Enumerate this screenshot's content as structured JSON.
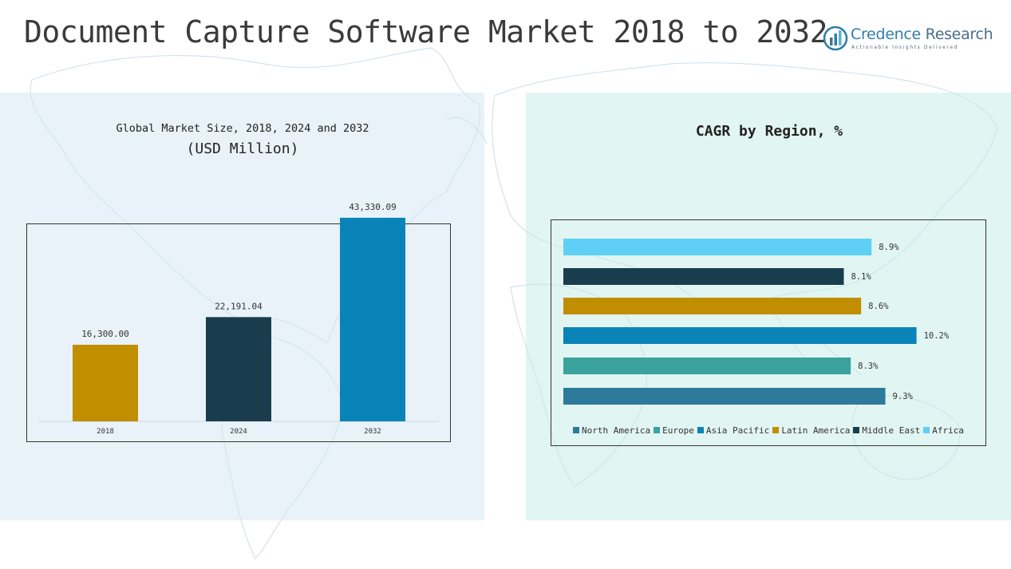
{
  "title": "Document Capture Software Market 2018 to 2032",
  "logo": {
    "name_part1": "Credence",
    "name_part2": "Research",
    "tagline": "Actionable Insights Delivered"
  },
  "colors": {
    "gold": "#c08e00",
    "dark_navy": "#1a3d4d",
    "blue": "#0a84b8",
    "steel_blue": "#2e7a9a",
    "teal": "#3aa39e",
    "sky": "#5fd0f5"
  },
  "chart_data": [
    {
      "type": "bar",
      "title": "Global Market Size, 2018, 2024 and 2032",
      "subtitle": "(USD Million)",
      "categories": [
        "2018",
        "2024",
        "2032"
      ],
      "values": [
        16300.0,
        22191.04,
        43330.09
      ],
      "value_labels": [
        "16,300.00",
        "22,191.04",
        "43,330.09"
      ],
      "colors": [
        "#c08e00",
        "#1a3d4d",
        "#0a84b8"
      ],
      "ylim": [
        0,
        44500
      ]
    },
    {
      "type": "bar",
      "orientation": "horizontal",
      "title": "CAGR by Region, %",
      "categories": [
        "Africa",
        "Middle East",
        "Latin America",
        "Asia Pacific",
        "Europe",
        "North America"
      ],
      "values": [
        8.9,
        8.1,
        8.6,
        10.2,
        8.3,
        9.3
      ],
      "value_labels": [
        "8.9%",
        "8.1%",
        "8.6%",
        "10.2%",
        "8.3%",
        "9.3%"
      ],
      "colors": [
        "#5fd0f5",
        "#1a3d4d",
        "#c08e00",
        "#0a84b8",
        "#3aa39e",
        "#2e7a9a"
      ],
      "xlim": [
        0,
        11.2
      ],
      "legend": [
        {
          "label": "North America",
          "color": "#2e7a9a"
        },
        {
          "label": "Europe",
          "color": "#3aa39e"
        },
        {
          "label": "Asia Pacific",
          "color": "#0a84b8"
        },
        {
          "label": "Latin America",
          "color": "#c08e00"
        },
        {
          "label": "Middle East",
          "color": "#1a3d4d"
        },
        {
          "label": "Africa",
          "color": "#5fd0f5"
        }
      ]
    }
  ]
}
